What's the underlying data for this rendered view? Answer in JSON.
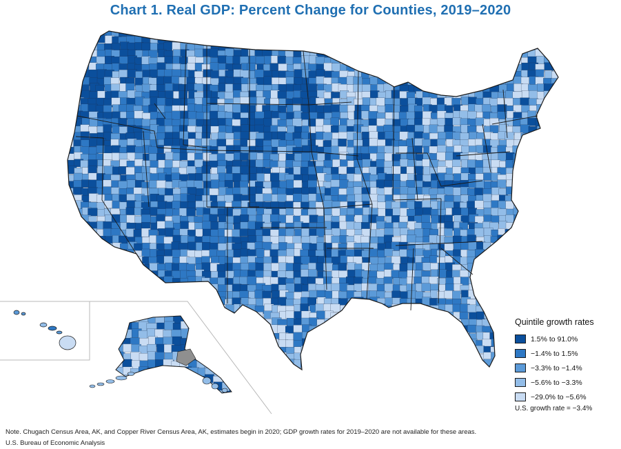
{
  "title": "Chart 1. Real GDP: Percent Change for Counties, 2019–2020",
  "legend": {
    "title": "Quintile growth rates",
    "items": [
      {
        "label": "1.5% to 91.0%",
        "color": "#0b4f9c"
      },
      {
        "label": "−1.4% to 1.5%",
        "color": "#2e78c4"
      },
      {
        "label": "−3.3% to −1.4%",
        "color": "#5b9ad8"
      },
      {
        "label": "−5.6% to −3.3%",
        "color": "#93bde8"
      },
      {
        "label": "−29.0% to −5.6%",
        "color": "#c9dcf3"
      }
    ],
    "us_rate": "U.S. growth rate = −3.4%"
  },
  "na_color": "#8f8f8f",
  "footnote": "Note. Chugach Census Area, AK, and Copper River Census Area, AK, estimates begin in 2020; GDP growth rates for 2019–2020 are not available for these areas.",
  "source": "U.S. Bureau of Economic Analysis"
}
